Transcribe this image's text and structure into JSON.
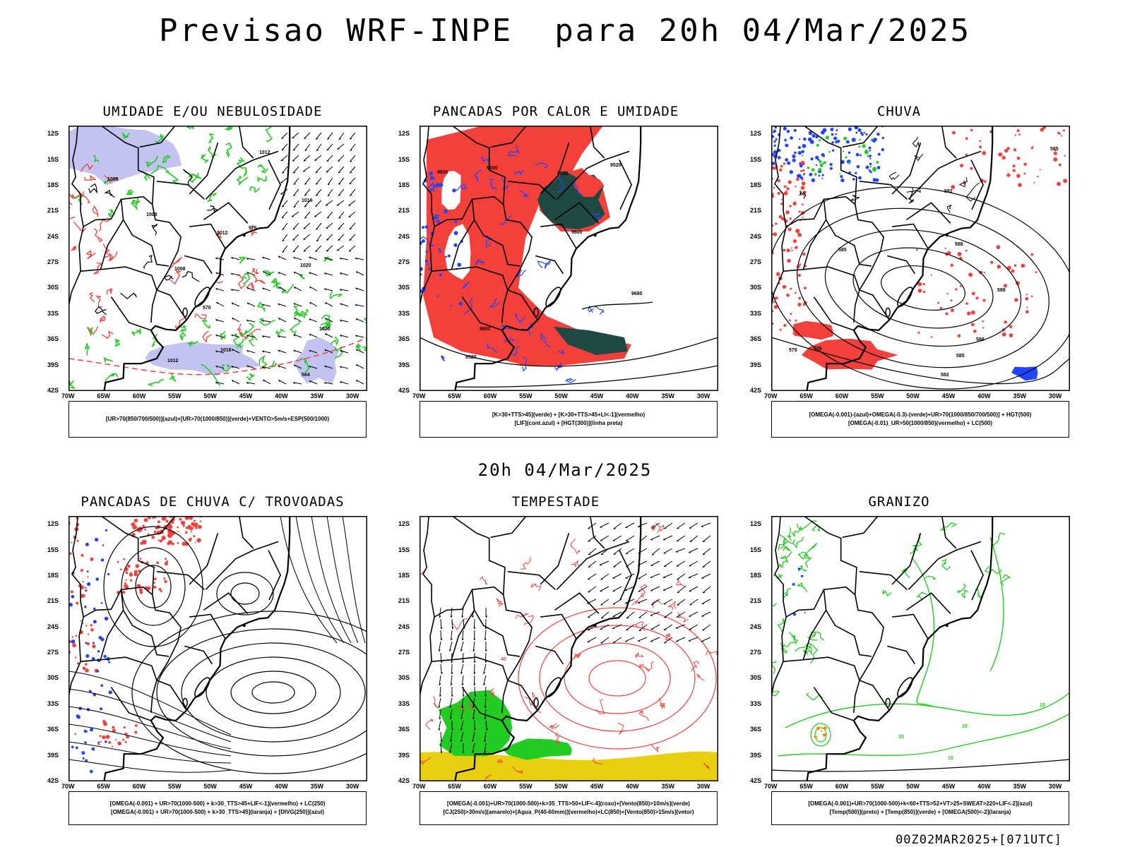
{
  "title": "Previsao WRF-INPE  para 20h 04/Mar/2025",
  "mid_date": "20h 04/Mar/2025",
  "run_info": "00Z02MAR2025+[071UTC]",
  "lat_ticks": [
    "12S",
    "15S",
    "18S",
    "21S",
    "24S",
    "27S",
    "30S",
    "33S",
    "36S",
    "39S",
    "42S"
  ],
  "lon_ticks": [
    "70W",
    "65W",
    "60W",
    "55W",
    "50W",
    "45W",
    "40W",
    "35W",
    "30W"
  ],
  "colors": {
    "red": "#f4403a",
    "blue": "#2244ff",
    "green": "#22cc22",
    "lavender": "#b8b8f0",
    "darkteal": "#1f4a44",
    "yellow": "#e8d010"
  },
  "panels": [
    {
      "title": "UMIDADE E/OU NEBULOSIDADE",
      "legend": [
        "[UR>70(850/700/500)](azul)+[UR>70(1000/850)](verde)+VENTO>5m/s+ESP(500/1000)"
      ]
    },
    {
      "title": "PANCADAS POR CALOR E UMIDADE",
      "legend": [
        "[K>30+TTS>45](verde) + [K>30+TTS>45+LI<-1](vermelho)",
        "[LIF](cont.azul) + [HGT(300)](linha preta)"
      ]
    },
    {
      "title": "CHUVA",
      "legend": [
        "[OMEGA(-0.001)-(azul)+OMEGA(-0.3)-(verde)+UR>70(1000/850/700/500)] + HGT(500)",
        "[OMEGA(-0.01)_UR>50(1000/850)(vermelho) + LC(500)"
      ]
    },
    {
      "title": "PANCADAS DE CHUVA C/ TROVOADAS",
      "legend": [
        "[OMEGA(-0.001) + UR>70(1000-500) + k>30_TTS>45+LIF<-1](vermelho) + LC(250)",
        "[OMEGA(-0.001) + UR>70(1000-500) + k>30_TTS>45](laranja) + [DIVG(250)](azul)"
      ]
    },
    {
      "title": "TEMPESTADE",
      "legend": [
        "[OMEGA(-0.001)+UR>70(1000-500)+k>35_TTS>50+LIF<-4](roxo)+[Vento(850)>10m/s](verde)",
        "[CJ(250)>30m/s](amarelo)+[Agua_P(40-60mm)](vermelho)+LC(850)+[Vento(850)>15m/s](vetor)"
      ]
    },
    {
      "title": "GRANIZO",
      "legend": [
        "[OMEGA(-0.001)+UR>70(1000-500)+k<60+TTS>52+VT>25+SWEAT>220+LIF<-2](azul)",
        "[Temp(500)](preto) + [Temp(850)](verde) + [OMEGA(500)<-2](laranja)"
      ]
    }
  ],
  "contour_labels": {
    "p1": [
      "1012",
      "1008",
      "1008",
      "1012",
      "1016",
      "1020",
      "1020",
      "1008",
      "1012",
      "1016",
      "570",
      "576",
      "564"
    ],
    "p2": [
      "9600",
      "9600",
      "9600",
      "9520",
      "9600",
      "9680",
      "9600",
      "9520"
    ],
    "p3": [
      "585",
      "582",
      "585",
      "588",
      "588",
      "588",
      "585",
      "582",
      "579",
      "576"
    ],
    "p5": [
      "40",
      "40",
      "40",
      "40"
    ],
    "p6": [
      "15",
      "15",
      "15",
      "15"
    ]
  }
}
